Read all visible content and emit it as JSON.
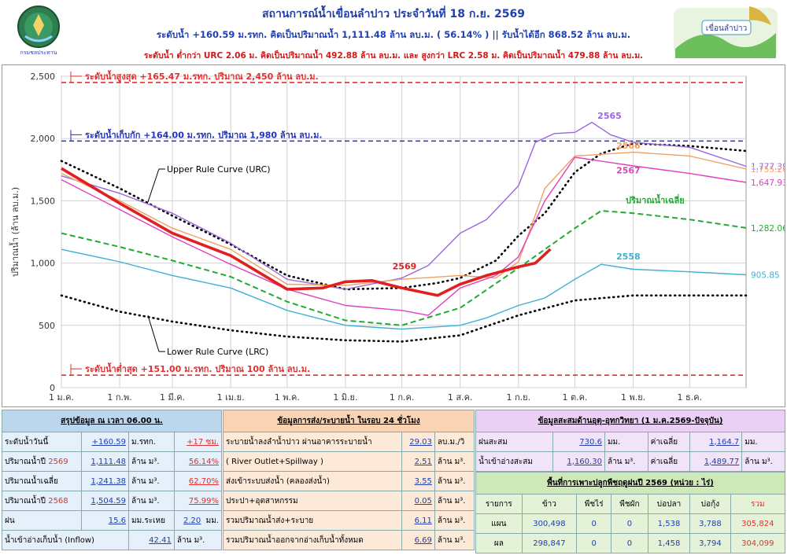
{
  "header": {
    "title": "สถานการณ์น้ำเขื่อนลำปาว ประจำวันที่ 18 ก.ย. 2569",
    "line2": "ระดับน้ำ +160.59 ม.รทก.  คิดเป็นปริมาณน้ำ 1,111.48 ล้าน ลบ.ม. ( 56.14% )  || รับน้ำได้อีก 868.52 ล้าน ลบ.ม.",
    "line3": "ระดับน้ำ ต่ำกว่า URC 2.06 ม. คิดเป็นปริมาณน้ำ 492.88 ล้าน ลบ.ม. และ สูงกว่า LRC 2.58 ม. คิดเป็นปริมาณน้ำ 479.88 ล้าน ลบ.ม.",
    "logo_left_text": "กรมชลประทาน",
    "logo_right_text": "เขื่อนลำปาว",
    "colors": {
      "title": "#1f3fae",
      "warn": "#d01818"
    }
  },
  "chart_data": {
    "type": "line",
    "ylabel": "ปริมาณน้ำ (ล้าน ลบ.ม.)",
    "ylim": [
      0,
      2500
    ],
    "yticks": [
      0,
      500,
      1000,
      1500,
      2000,
      2500
    ],
    "ytick_labels": [
      "0",
      "500",
      "1,000",
      "1,500",
      "2,000",
      "2,500"
    ],
    "xlim": [
      "2026-01-01",
      "2026-12-31"
    ],
    "xticks": [
      "2026-01-01",
      "2026-02-01",
      "2026-03-01",
      "2026-04-01",
      "2026-05-01",
      "2026-06-01",
      "2026-07-01",
      "2026-08-01",
      "2026-09-01",
      "2026-10-01",
      "2026-11-01",
      "2026-12-01"
    ],
    "xtick_labels": [
      "1 ม.ค.",
      "1 ก.พ.",
      "1 มี.ค.",
      "1 เม.ย.",
      "1 พ.ค.",
      "1 มิ.ย.",
      "1 ก.ค.",
      "1 ส.ค.",
      "1 ก.ย.",
      "1 ต.ค.",
      "1 พ.ย.",
      "1 ธ.ค."
    ],
    "grid": true,
    "hlines": [
      {
        "label": "ระดับน้ำสูงสุด +165.47 ม.รทก. ปริมาณ 2,450 ล้าน ลบ.ม.",
        "y": 2450,
        "color": "#e03030"
      },
      {
        "label": "ระดับน้ำเก็บกัก +164.00 ม.รทก. ปริมาณ 1,980 ล้าน ลบ.ม.",
        "y": 1980,
        "color": "#2233bb"
      },
      {
        "label": "ระดับน้ำต่ำสุด +151.00 ม.รทก. ปริมาณ 100 ล้าน ลบ.ม.",
        "y": 100,
        "color": "#e03030"
      }
    ],
    "series": [
      {
        "name": "Upper Rule Curve (URC)",
        "color": "#000000",
        "style": "dotted",
        "x": [
          "2026-01-01",
          "2026-02-01",
          "2026-03-01",
          "2026-04-01",
          "2026-05-01",
          "2026-06-01",
          "2026-07-01",
          "2026-07-20",
          "2026-08-01",
          "2026-08-20",
          "2026-09-01",
          "2026-09-15",
          "2026-10-01",
          "2026-10-15",
          "2026-11-01",
          "2026-12-01",
          "2026-12-31"
        ],
        "y": [
          1820,
          1600,
          1380,
          1150,
          900,
          790,
          800,
          840,
          880,
          1020,
          1220,
          1400,
          1730,
          1880,
          1960,
          1940,
          1900
        ]
      },
      {
        "name": "Lower Rule Curve (LRC)",
        "color": "#000000",
        "style": "dotted",
        "x": [
          "2026-01-01",
          "2026-02-01",
          "2026-03-01",
          "2026-04-01",
          "2026-05-01",
          "2026-06-01",
          "2026-07-01",
          "2026-08-01",
          "2026-09-01",
          "2026-10-01",
          "2026-11-01",
          "2026-12-01",
          "2026-12-31"
        ],
        "y": [
          740,
          610,
          530,
          460,
          410,
          380,
          370,
          420,
          580,
          700,
          740,
          740,
          740
        ]
      },
      {
        "name": "ปริมาณน้ำเฉลี่ย",
        "color": "#22aa33",
        "style": "dashed",
        "x": [
          "2026-01-01",
          "2026-02-01",
          "2026-03-01",
          "2026-04-01",
          "2026-05-01",
          "2026-06-01",
          "2026-07-01",
          "2026-08-01",
          "2026-09-01",
          "2026-10-01",
          "2026-10-15",
          "2026-11-01",
          "2026-12-01",
          "2026-12-31"
        ],
        "y": [
          1240,
          1130,
          1020,
          890,
          690,
          540,
          500,
          640,
          960,
          1280,
          1420,
          1400,
          1350,
          1282.06
        ]
      },
      {
        "name": "2558",
        "color": "#40b0d0",
        "x": [
          "2026-01-01",
          "2026-02-01",
          "2026-03-01",
          "2026-04-01",
          "2026-05-01",
          "2026-06-01",
          "2026-07-01",
          "2026-08-01",
          "2026-08-15",
          "2026-09-01",
          "2026-09-15",
          "2026-10-01",
          "2026-10-15",
          "2026-11-01",
          "2026-12-01",
          "2026-12-31"
        ],
        "y": [
          1110,
          1010,
          900,
          800,
          620,
          500,
          470,
          500,
          560,
          660,
          720,
          870,
          990,
          950,
          930,
          905.85
        ]
      },
      {
        "name": "2565",
        "color": "#9966dd",
        "x": [
          "2026-01-01",
          "2026-02-01",
          "2026-03-01",
          "2026-04-01",
          "2026-05-01",
          "2026-06-01",
          "2026-07-01",
          "2026-07-15",
          "2026-08-01",
          "2026-08-15",
          "2026-09-01",
          "2026-09-10",
          "2026-09-20",
          "2026-10-01",
          "2026-10-10",
          "2026-10-20",
          "2026-11-01",
          "2026-12-01",
          "2026-12-31"
        ],
        "y": [
          1700,
          1560,
          1400,
          1160,
          870,
          790,
          880,
          980,
          1240,
          1350,
          1620,
          1970,
          2040,
          2050,
          2130,
          2030,
          1970,
          1930,
          1777.39
        ]
      },
      {
        "name": "2566",
        "color": "#f0a060",
        "x": [
          "2026-01-01",
          "2026-02-01",
          "2026-03-01",
          "2026-04-01",
          "2026-05-01",
          "2026-06-01",
          "2026-07-01",
          "2026-08-01",
          "2026-08-20",
          "2026-09-01",
          "2026-09-15",
          "2026-10-01",
          "2026-11-01",
          "2026-12-01",
          "2026-12-31"
        ],
        "y": [
          1720,
          1500,
          1280,
          1110,
          830,
          820,
          870,
          900,
          880,
          1010,
          1600,
          1860,
          1890,
          1860,
          1755.2
        ]
      },
      {
        "name": "2567",
        "color": "#e040c0",
        "x": [
          "2026-01-01",
          "2026-02-01",
          "2026-03-01",
          "2026-04-01",
          "2026-05-01",
          "2026-06-01",
          "2026-07-01",
          "2026-07-15",
          "2026-08-01",
          "2026-08-20",
          "2026-09-01",
          "2026-09-15",
          "2026-10-01",
          "2026-11-01",
          "2026-12-01",
          "2026-12-31"
        ],
        "y": [
          1670,
          1430,
          1210,
          990,
          790,
          660,
          620,
          580,
          800,
          900,
          1050,
          1500,
          1850,
          1780,
          1720,
          1647.93
        ]
      },
      {
        "name": "2569",
        "color": "#e02020",
        "style": "bold",
        "x": [
          "2026-01-01",
          "2026-02-01",
          "2026-03-01",
          "2026-04-01",
          "2026-05-01",
          "2026-05-20",
          "2026-06-01",
          "2026-06-15",
          "2026-07-01",
          "2026-07-20",
          "2026-08-01",
          "2026-08-15",
          "2026-09-01",
          "2026-09-10",
          "2026-09-18"
        ],
        "y": [
          1760,
          1480,
          1240,
          1060,
          790,
          800,
          850,
          860,
          800,
          740,
          830,
          900,
          970,
          1000,
          1111.48
        ]
      }
    ],
    "series_labels": [
      {
        "text": "2565",
        "x": "2026-10-13",
        "y": 2160,
        "color": "#9966dd"
      },
      {
        "text": "2566",
        "x": "2026-10-23",
        "y": 1920,
        "color": "#f0a060"
      },
      {
        "text": "2567",
        "x": "2026-10-23",
        "y": 1720,
        "color": "#e040c0"
      },
      {
        "text": "ปริมาณน้ำเฉลี่ย",
        "x": "2026-10-28",
        "y": 1480,
        "color": "#22aa33"
      },
      {
        "text": "2558",
        "x": "2026-10-23",
        "y": 1030,
        "color": "#40b0d0"
      },
      {
        "text": "2569",
        "x": "2026-06-26",
        "y": 950,
        "color": "#e02020"
      }
    ],
    "end_labels": [
      {
        "text": "1,777.39",
        "y": 1777.39,
        "color": "#9966dd"
      },
      {
        "text": "1,755.20",
        "y": 1755.2,
        "color": "#f0a060"
      },
      {
        "text": "1,647.93",
        "y": 1647.93,
        "color": "#e040c0"
      },
      {
        "text": "1,282.06",
        "y": 1282.06,
        "color": "#22aa33"
      },
      {
        "text": "905.85",
        "y": 905.85,
        "color": "#40b0d0"
      }
    ]
  },
  "summary": {
    "title": "สรุปข้อมูล ณ เวลา 06.00 น.",
    "rows": [
      {
        "label": "ระดับน้ำวันนี้",
        "value": "+160.59",
        "unit": "ม.รทก.",
        "extra": "+17",
        "extra_unit": "ซม."
      },
      {
        "label": "ปริมาณน้ำปี",
        "year": "2569",
        "value": "1,111.48",
        "unit": "ล้าน ม³.",
        "extra": "56.14%"
      },
      {
        "label": "ปริมาณน้ำเฉลี่ย",
        "value": "1,241.38",
        "unit": "ล้าน ม³.",
        "extra": "62.70%"
      },
      {
        "label": "ปริมาณน้ำปี",
        "year": "2568",
        "value": "1,504.59",
        "unit": "ล้าน ม³.",
        "extra": "75.99%"
      },
      {
        "label": "ฝน",
        "value": "15.6",
        "unit": "มม.ระเหย",
        "extra": "2.20",
        "extra_unit": "มม."
      },
      {
        "label": "น้ำเข้าอ่างเก็บน้ำ (Inflow)",
        "value": "42.41",
        "unit": "ล้าน ม³."
      }
    ]
  },
  "release": {
    "title": "ข้อมูลการส่ง/ระบายน้ำ ในรอบ 24 ชั่วโมง",
    "rows": [
      {
        "label": "ระบายน้ำลงลำน้ำปาว ผ่านอาคารระบายน้ำ",
        "value": "29.03",
        "unit": "ลบ.ม./วิ"
      },
      {
        "label": "( River Outlet+Spillway )",
        "value": "2.51",
        "unit": "ล้าน ม³."
      },
      {
        "label": "ส่งเข้าระบบส่งน้ำ (คลองส่งน้ำ)",
        "value": "3.55",
        "unit": "ล้าน ม³."
      },
      {
        "label": "ประปา+อุตสาหกรรม",
        "value": "0.05",
        "unit": "ล้าน ม³."
      },
      {
        "label": "รวมปริมาณน้ำส่ง+ระบาย",
        "value": "6.11",
        "unit": "ล้าน ม³."
      },
      {
        "label": "รวมปริมาณน้ำออกจากอ่างเก็บน้ำทั้งหมด",
        "value": "6.69",
        "unit": "ล้าน ม³."
      }
    ]
  },
  "hydro": {
    "title": "ข้อมูลสะสมด้านอุตุ-อุทกวิทยา (1 ม.ค.2569-ปัจจุบัน)",
    "rain_label": "ฝนสะสม",
    "rain_value": "730.6",
    "rain_unit": "มม.",
    "rain_avg_label": "ค่าเฉลี่ย",
    "rain_avg": "1,164.7",
    "rain_avg_unit": "มม.",
    "inflow_label": "น้ำเข้าอ่างสะสม",
    "inflow_value": "1,160.30",
    "inflow_unit": "ล้าน ม³.",
    "inflow_avg_label": "ค่าเฉลี่ย",
    "inflow_avg": "1,489.77",
    "inflow_avg_unit": "ล้าน ม³."
  },
  "crops": {
    "title": "พื้นที่การเพาะปลูกพืชฤดูฝนปี 2569 (หน่วย : ไร่)",
    "headers": [
      "รายการ",
      "ข้าว",
      "พืชไร่",
      "พืชผัก",
      "บ่อปลา",
      "บ่อกุ้ง",
      "รวม"
    ],
    "rows": [
      [
        "แผน",
        "300,498",
        "0",
        "0",
        "1,538",
        "3,788",
        "305,824"
      ],
      [
        "ผล",
        "298,847",
        "0",
        "0",
        "1,458",
        "3,794",
        "304,099"
      ]
    ]
  }
}
